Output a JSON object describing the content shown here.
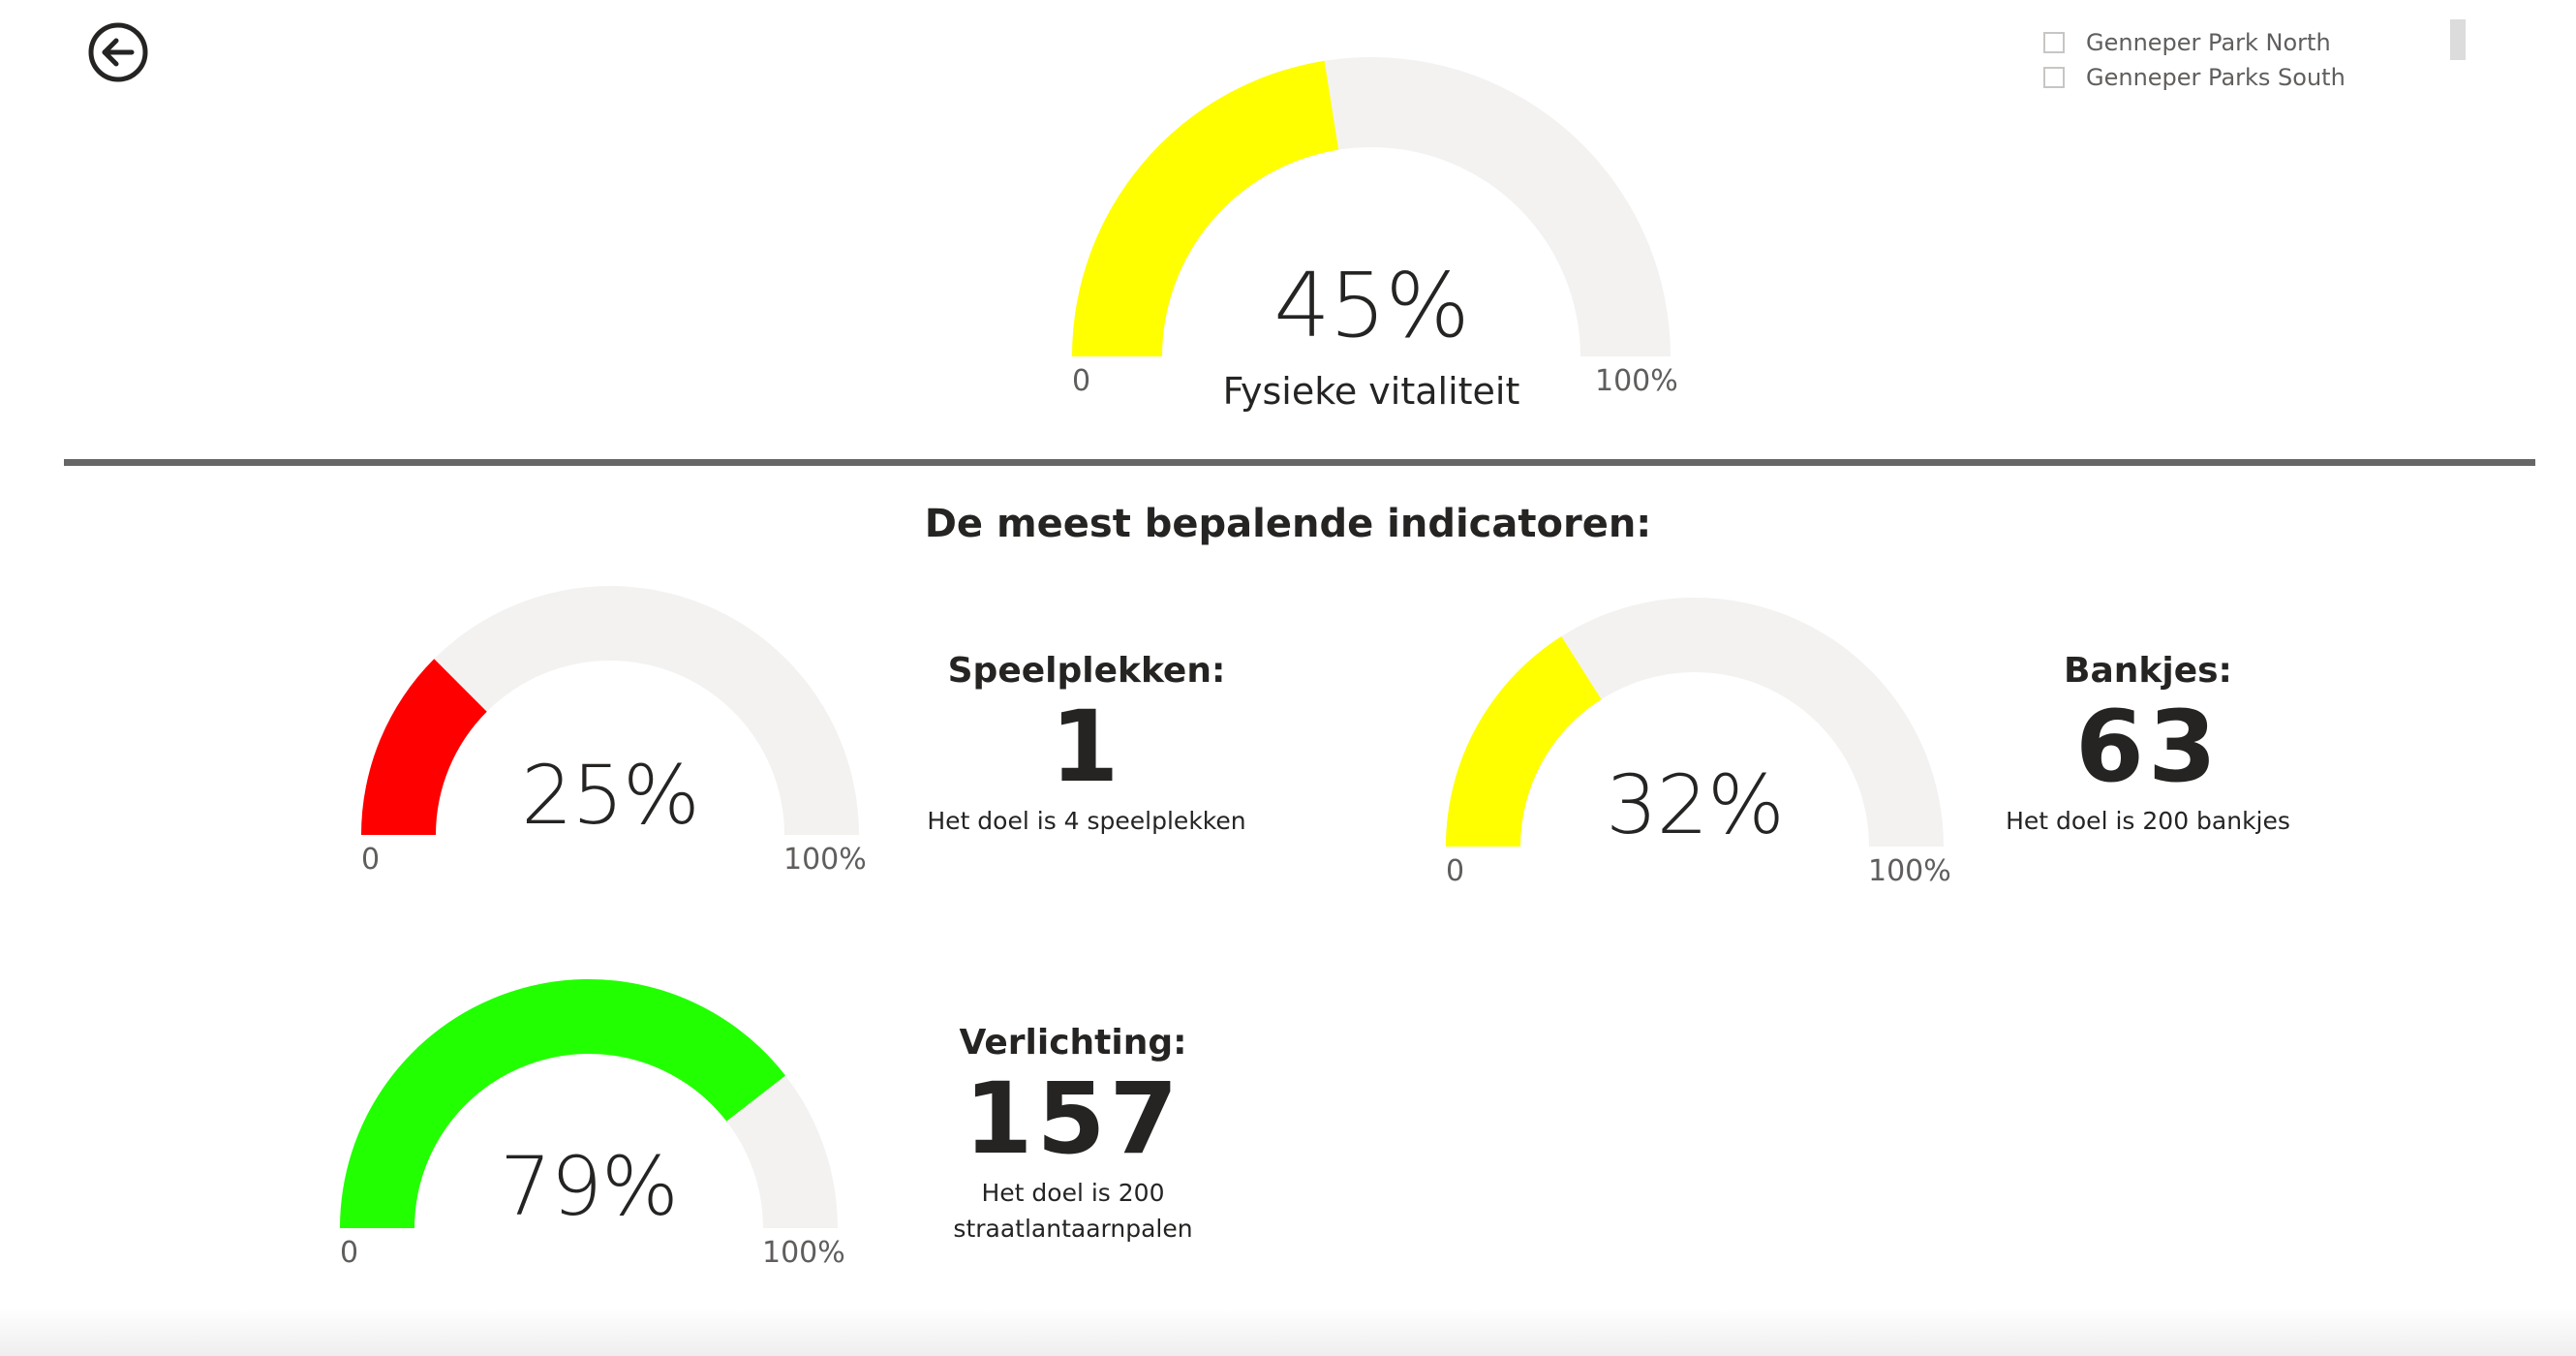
{
  "back": {
    "icon": "arrow-left-circle-icon"
  },
  "slicer": {
    "items": [
      {
        "label": "Genneper Park North",
        "checked": false
      },
      {
        "label": "Genneper Parks South",
        "checked": false
      }
    ]
  },
  "main_gauge": {
    "value": 0.45,
    "value_label": "45%",
    "min_label": "0",
    "max_label": "100%",
    "title": "Fysieke vitaliteit",
    "color": "#FFFF00"
  },
  "section": {
    "title": "De meest bepalende indicatoren:"
  },
  "indicators": [
    {
      "gauge": {
        "value": 0.25,
        "value_label": "25%",
        "min_label": "0",
        "max_label": "100%",
        "color": "#FF0000"
      },
      "card": {
        "title": "Speelplekken:",
        "value": "1",
        "goal": "Het doel is 4 speelplekken"
      }
    },
    {
      "gauge": {
        "value": 0.32,
        "value_label": "32%",
        "min_label": "0",
        "max_label": "100%",
        "color": "#FFFF00"
      },
      "card": {
        "title": "Bankjes:",
        "value": "63",
        "goal": "Het doel is 200 bankjes"
      }
    },
    {
      "gauge": {
        "value": 0.79,
        "value_label": "79%",
        "min_label": "0",
        "max_label": "100%",
        "color": "#22FF00"
      },
      "card": {
        "title": "Verlichting:",
        "value": "157",
        "goal_line1": "Het doel is 200",
        "goal_line2": "straatlantaarnpalen"
      }
    }
  ],
  "colors": {
    "track": "#F3F2F1",
    "divider": "#666666",
    "text": "#252423"
  }
}
